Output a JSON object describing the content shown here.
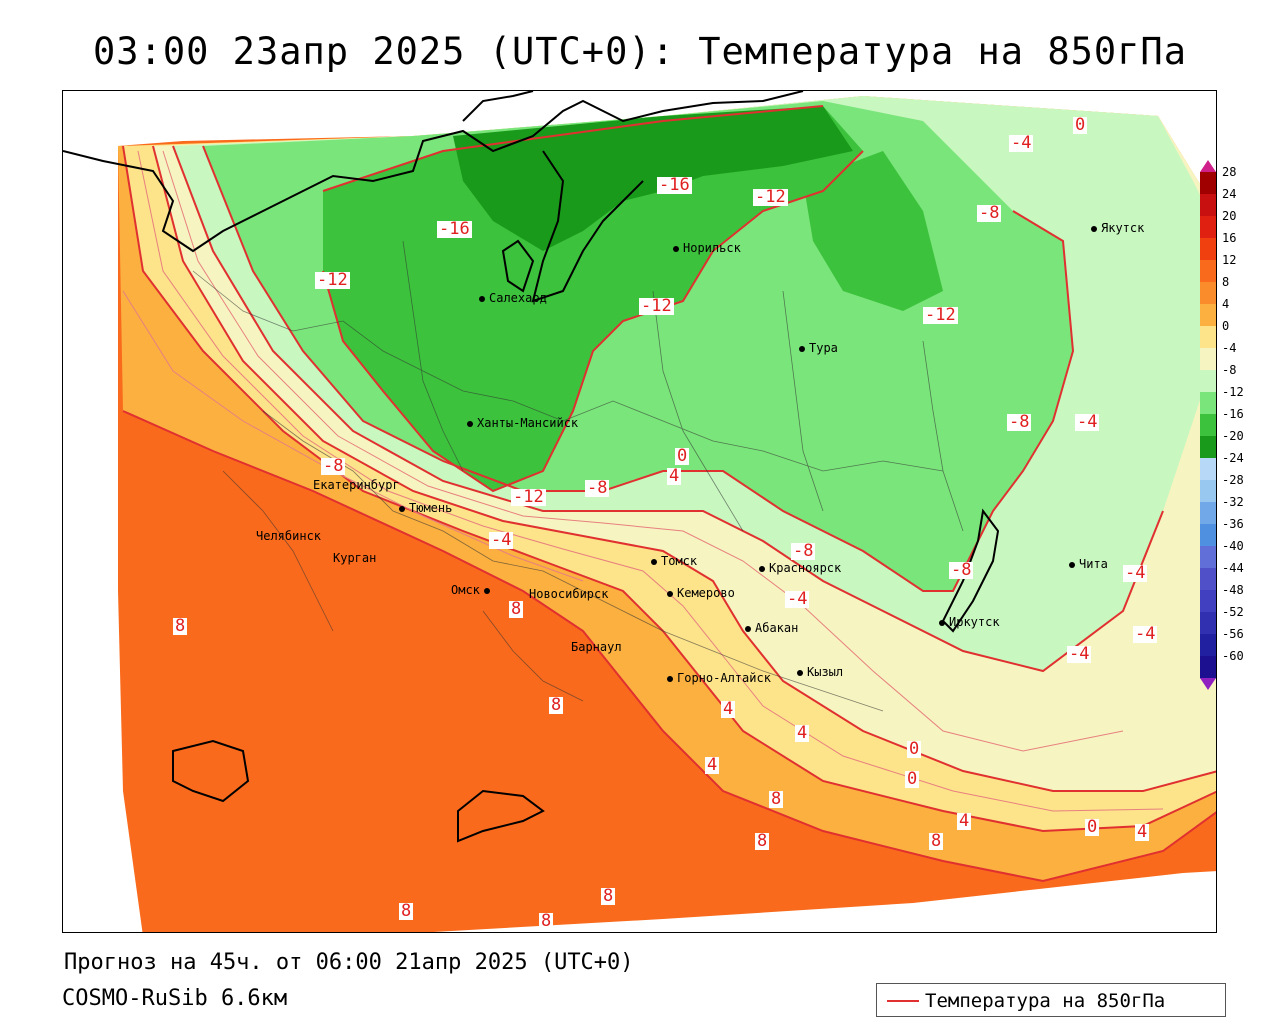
{
  "title": "03:00 23апр 2025 (UTC+0): Температура на 850гПа",
  "forecast_line": "Прогноз на 45ч. от 06:00 21апр 2025 (UTC+0)",
  "model_name": "COSMO-RuSib 6.6км",
  "legend": {
    "label": "Температура на 850гПа",
    "line_color": "#e03030"
  },
  "colors": {
    "warm_8": "#fa6a1c",
    "warm_4": "#fbb040",
    "warm_0": "#fde38a",
    "cool_0": "#f6f4c0",
    "cool_m4": "#c8f7c0",
    "cool_m8": "#7ae57a",
    "cool_m12": "#3cc23c",
    "cool_m16": "#1a9a1a",
    "isoline": "#e03030",
    "background": "#ffffff"
  },
  "cities": [
    {
      "name": "Норильск"
    },
    {
      "name": "Якутск"
    },
    {
      "name": "Салехард"
    },
    {
      "name": "Тура"
    },
    {
      "name": "Ханты-Мансийск"
    },
    {
      "name": "Екатеринбург"
    },
    {
      "name": "Тюмень"
    },
    {
      "name": "Челябинск"
    },
    {
      "name": "Курган"
    },
    {
      "name": "Омск"
    },
    {
      "name": "Новосибирск"
    },
    {
      "name": "Томск"
    },
    {
      "name": "Кемерово"
    },
    {
      "name": "Красноярск"
    },
    {
      "name": "Абакан"
    },
    {
      "name": "Барнаул"
    },
    {
      "name": "Горно-Алтайск"
    },
    {
      "name": "Кызыл"
    },
    {
      "name": "Иркутск"
    },
    {
      "name": "Чита"
    }
  ],
  "isoline_labels": [
    "-16",
    "-16",
    "-12",
    "-12",
    "-12",
    "-12",
    "-8",
    "-8",
    "-8",
    "-8",
    "-8",
    "-4",
    "-4",
    "-4",
    "-12",
    "-8",
    "-4",
    "-4",
    "-4",
    "0",
    "4",
    "0",
    "8",
    "8",
    "8",
    "4",
    "8",
    "8",
    "4",
    "0",
    "0",
    "4",
    "8",
    "8",
    "8",
    "8",
    "0",
    "4",
    "4",
    "-4"
  ],
  "color_scale": {
    "values": [
      "28",
      "24",
      "20",
      "16",
      "12",
      "8",
      "4",
      "0",
      "-4",
      "-8",
      "-12",
      "-16",
      "-20",
      "-24",
      "-28",
      "-32",
      "-36",
      "-40",
      "-44",
      "-48",
      "-52",
      "-56",
      "-60"
    ],
    "colors": [
      "#a00000",
      "#c81010",
      "#e02010",
      "#f04010",
      "#fa6a1c",
      "#fb8c2c",
      "#fbb040",
      "#fde38a",
      "#f6f4c0",
      "#c8f7c0",
      "#7ae57a",
      "#3cc23c",
      "#1a9a1a",
      "#b8d8f8",
      "#98c8f0",
      "#70a8e8",
      "#5090e0",
      "#6070d8",
      "#5050c8",
      "#4040c0",
      "#3030b0",
      "#2020a0",
      "#1c1090"
    ]
  }
}
